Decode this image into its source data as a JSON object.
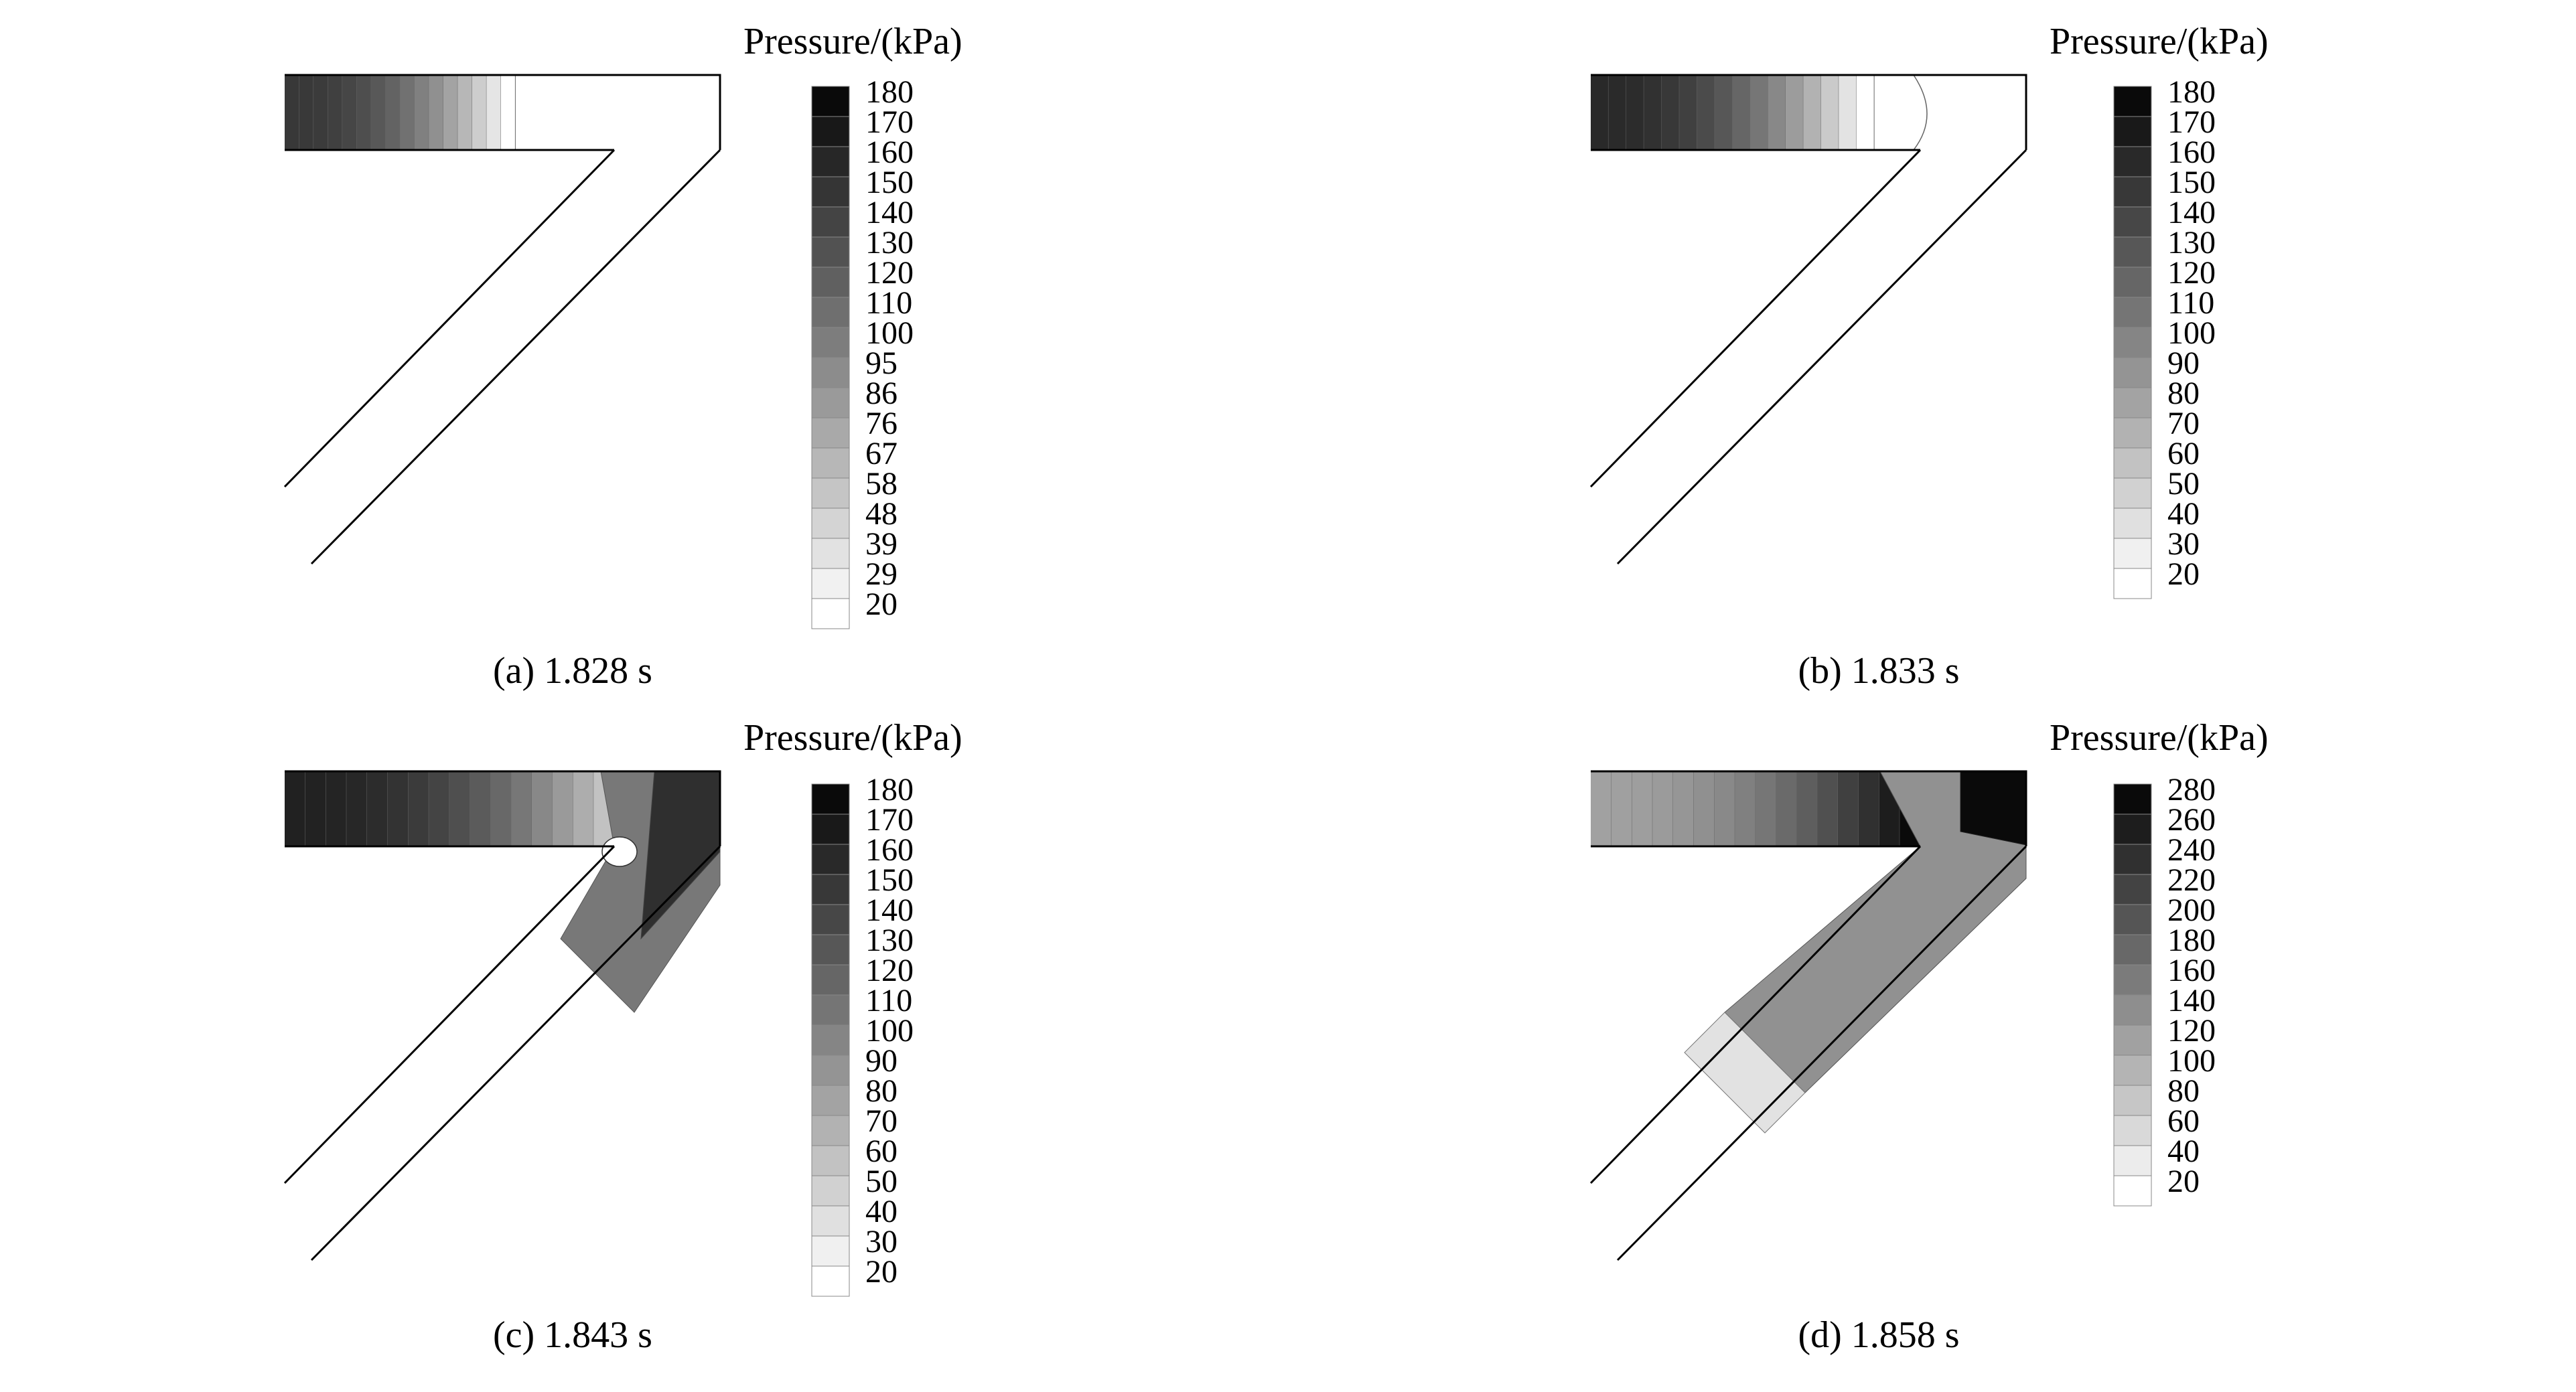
{
  "panels": [
    {
      "caption": "(a) 1.828 s",
      "legend_title": "Pressure/(kPa)",
      "legend_ticks": [
        "180",
        "170",
        "160",
        "150",
        "140",
        "130",
        "120",
        "110",
        "100",
        "95",
        "86",
        "76",
        "67",
        "58",
        "48",
        "39",
        "29",
        "20"
      ],
      "fill_pattern": "waveFront",
      "pipe_fill": [
        {
          "from": 0.0,
          "to": 0.7,
          "pressure_from": 150,
          "pressure_to": 20
        }
      ]
    },
    {
      "caption": "(b) 1.833 s",
      "legend_title": "Pressure/(kPa)",
      "legend_ticks": [
        "180",
        "170",
        "160",
        "150",
        "140",
        "130",
        "120",
        "110",
        "100",
        "90",
        "80",
        "70",
        "60",
        "50",
        "40",
        "30",
        "20"
      ],
      "fill_pattern": "waveFront",
      "pipe_fill": [
        {
          "from": 0.0,
          "to": 0.86,
          "pressure_from": 160,
          "pressure_to": 20
        }
      ]
    },
    {
      "caption": "(c) 1.843 s",
      "legend_title": "Pressure/(kPa)",
      "legend_ticks": [
        "180",
        "170",
        "160",
        "150",
        "140",
        "130",
        "120",
        "110",
        "100",
        "90",
        "80",
        "70",
        "60",
        "50",
        "40",
        "30",
        "20"
      ],
      "fill_pattern": "elbowReflection",
      "pipe_fill": [
        {
          "from": 0.0,
          "to": 1.0,
          "pressure_from": 165,
          "pressure_to": 60
        }
      ]
    },
    {
      "caption": "(d) 1.858 s",
      "legend_title": "Pressure/(kPa)",
      "legend_ticks": [
        "280",
        "260",
        "240",
        "220",
        "200",
        "180",
        "160",
        "140",
        "120",
        "100",
        "80",
        "60",
        "40",
        "20"
      ],
      "fill_pattern": "downstreamPropagation",
      "pipe_fill": [
        {
          "from": 0.0,
          "to": 1.0,
          "pressure_from": 120,
          "pressure_to": 280
        }
      ]
    }
  ]
}
